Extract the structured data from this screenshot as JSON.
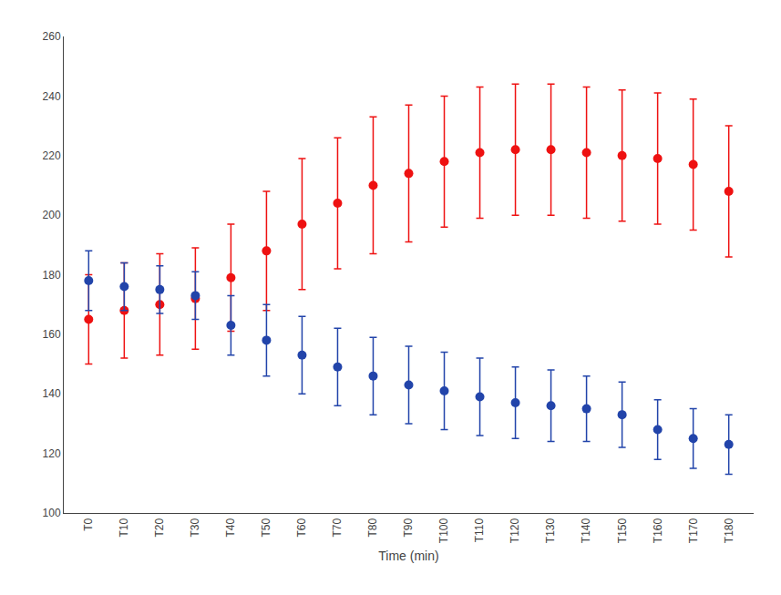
{
  "chart_data": {
    "type": "scatter",
    "marker": "circle",
    "xlabel": "Time (min)",
    "categories": [
      "T0",
      "T10",
      "T20",
      "T30",
      "T40",
      "T50",
      "T60",
      "T70",
      "T80",
      "T90",
      "T100",
      "T110",
      "T120",
      "T130",
      "T140",
      "T150",
      "T160",
      "T170",
      "T180"
    ],
    "series": [
      {
        "color": "#EE1111",
        "values": [
          165,
          168,
          170,
          172,
          179,
          188,
          197,
          204,
          210,
          214,
          218,
          221,
          222,
          222,
          221,
          220,
          219,
          217,
          208
        ],
        "err_lower": [
          15,
          16,
          17,
          17,
          18,
          20,
          22,
          22,
          23,
          23,
          22,
          22,
          22,
          22,
          22,
          22,
          22,
          22,
          22
        ],
        "err_upper": [
          15,
          16,
          17,
          17,
          18,
          20,
          22,
          22,
          23,
          23,
          22,
          22,
          22,
          22,
          22,
          22,
          22,
          22,
          22
        ]
      },
      {
        "color": "#2244AA",
        "values": [
          178,
          176,
          175,
          173,
          163,
          158,
          153,
          149,
          146,
          143,
          141,
          139,
          137,
          136,
          135,
          133,
          128,
          125,
          123
        ],
        "err_lower": [
          10,
          8,
          8,
          8,
          10,
          12,
          13,
          13,
          13,
          13,
          13,
          13,
          12,
          12,
          11,
          11,
          10,
          10,
          10
        ],
        "err_upper": [
          10,
          8,
          8,
          8,
          10,
          12,
          13,
          13,
          13,
          13,
          13,
          13,
          12,
          12,
          11,
          11,
          10,
          10,
          10
        ]
      }
    ],
    "ylim": [
      100,
      260
    ],
    "yticks": [
      100,
      120,
      140,
      160,
      180,
      200,
      220,
      240,
      260
    ],
    "grid": false
  }
}
